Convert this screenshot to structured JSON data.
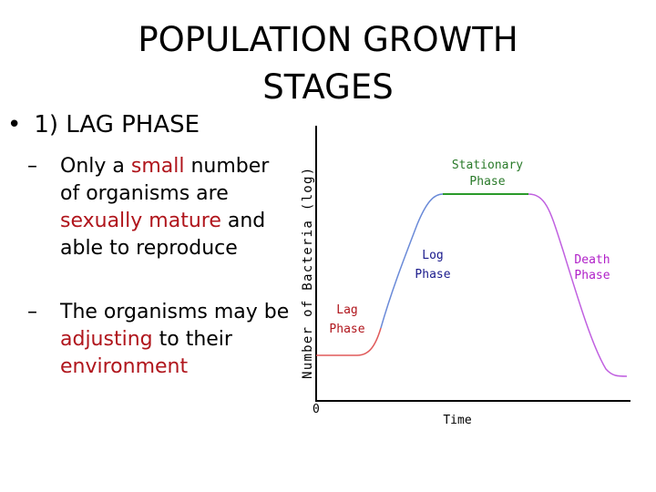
{
  "slide": {
    "title_line1": "POPULATION GROWTH",
    "title_line2": "STAGES",
    "bullet": {
      "marker": "•",
      "text": "1) LAG PHASE"
    },
    "subbullets": [
      {
        "dash": "–",
        "parts": [
          {
            "text": "Only a ",
            "color": "#000000"
          },
          {
            "text": "small",
            "color": "#b0151c"
          },
          {
            "text": " number of organisms are ",
            "color": "#000000"
          },
          {
            "text": "sexually mature",
            "color": "#b0151c"
          },
          {
            "text": " and able to reproduce",
            "color": "#000000"
          }
        ]
      },
      {
        "dash": "–",
        "parts": [
          {
            "text": "The organisms may be ",
            "color": "#000000"
          },
          {
            "text": "adjusting",
            "color": "#b0151c"
          },
          {
            "text": " to their ",
            "color": "#000000"
          },
          {
            "text": "environment",
            "color": "#b0151c"
          }
        ]
      }
    ]
  },
  "diagram": {
    "ylabel": "Number of Bacteria (log)",
    "xlabel": "Time",
    "origin_label": "0",
    "phases": {
      "lag": {
        "line1": "Lag",
        "line2": "Phase",
        "color": "#b0151c"
      },
      "log": {
        "line1": "Log",
        "line2": "Phase",
        "color": "#1a1a8c"
      },
      "stationary": {
        "line1": "Stationary",
        "line2": "Phase",
        "color": "#2a7a2a"
      },
      "death": {
        "line1": "Death",
        "line2": "Phase",
        "color": "#b020c8"
      }
    },
    "colors": {
      "axis": "#000000",
      "curve_lag": "#e05a5a",
      "curve_log": "#6a8ad8",
      "curve_stationary": "#2a9a2a",
      "curve_death": "#c060e0"
    }
  }
}
